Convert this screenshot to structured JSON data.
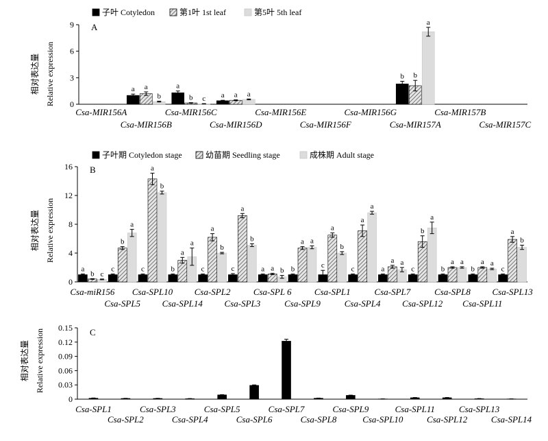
{
  "chart_data": [
    {
      "type": "bar",
      "panel": "A",
      "ylabel": "相对表达量 Relative expression",
      "ylim": [
        0,
        9
      ],
      "yticks": [
        0,
        3,
        6,
        9
      ],
      "categories": [
        "Csa-MIR156A",
        "Csa-MIR156B",
        "Csa-MIR156C",
        "Csa-MIR156D",
        "Csa-MIR156E",
        "Csa-MIR156F",
        "Csa-MIR156G",
        "Csa-MIR157A",
        "Csa-MIR157B",
        "Csa-MIR157C"
      ],
      "series": [
        {
          "name": "子叶 Cotyledon",
          "pattern": "solid",
          "values": [
            0,
            1.0,
            1.3,
            0.4,
            0,
            0,
            0,
            2.3,
            0,
            0
          ],
          "errors": [
            0,
            0.15,
            0.2,
            0.05,
            0,
            0,
            0,
            0.3,
            0,
            0
          ],
          "labels": [
            "",
            "a",
            "a",
            "a",
            "",
            "",
            "",
            "b",
            "",
            ""
          ]
        },
        {
          "name": "第1叶 1st leaf",
          "pattern": "hatch",
          "values": [
            0,
            1.2,
            0.15,
            0.45,
            0,
            0,
            0,
            2.1,
            0,
            0
          ],
          "errors": [
            0,
            0.2,
            0.03,
            0.05,
            0,
            0,
            0,
            0.6,
            0,
            0
          ],
          "labels": [
            "",
            "a",
            "b",
            "a",
            "",
            "",
            "",
            "b",
            "",
            ""
          ]
        },
        {
          "name": "第5叶 5th leaf",
          "pattern": "light",
          "values": [
            0,
            0.3,
            0.05,
            0.55,
            0,
            0,
            0,
            8.2,
            0,
            0
          ],
          "errors": [
            0,
            0.05,
            0.02,
            0.05,
            0,
            0,
            0,
            0.5,
            0,
            0
          ],
          "labels": [
            "",
            "b",
            "c",
            "a",
            "",
            "",
            "",
            "a",
            "",
            ""
          ]
        }
      ]
    },
    {
      "type": "bar",
      "panel": "B",
      "ylabel": "相对表达量 Relative expression",
      "ylim": [
        0,
        16
      ],
      "yticks": [
        0,
        4,
        8,
        12,
        16
      ],
      "categories": [
        "Csa-miR156",
        "Csa-SPL5",
        "Csa-SPL10",
        "Csa-SPL14",
        "Csa-SPL2",
        "Csa-SPL3",
        "Csa-SPL 6",
        "Csa-SPL9",
        "Csa-SPL1",
        "Csa-SPL4",
        "Csa-SPL7",
        "Csa-SPL12",
        "Csa-SPL8",
        "Csa-SPL11",
        "Csa-SPL13"
      ],
      "series": [
        {
          "name": "子叶期 Cotyledon stage",
          "pattern": "solid",
          "values": [
            1.0,
            1.0,
            1.0,
            1.0,
            1.0,
            1.0,
            1.0,
            1.0,
            1.0,
            1.0,
            1.0,
            1.0,
            1.0,
            1.0,
            1.0
          ],
          "errors": [
            0.1,
            0.1,
            0.1,
            0.1,
            0.1,
            0.15,
            0.1,
            0.1,
            0.6,
            0.1,
            0.1,
            0.1,
            0.1,
            0.1,
            0.1
          ],
          "labels": [
            "a",
            "c",
            "c",
            "b",
            "c",
            "c",
            "a",
            "b",
            "c",
            "c",
            "a",
            "c",
            "b",
            "b",
            "c"
          ]
        },
        {
          "name": "幼苗期 Seedling stage",
          "pattern": "hatch",
          "values": [
            0.4,
            4.7,
            14.3,
            3.0,
            6.2,
            9.2,
            1.1,
            4.7,
            6.5,
            7.1,
            2.1,
            5.6,
            2.0,
            2.0,
            5.9
          ],
          "errors": [
            0.05,
            0.2,
            0.8,
            0.4,
            0.5,
            0.3,
            0.1,
            0.2,
            0.3,
            0.8,
            0.2,
            0.8,
            0.1,
            0.1,
            0.4
          ],
          "labels": [
            "b",
            "b",
            "a",
            "a",
            "a",
            "a",
            "a",
            "a",
            "a",
            "a",
            "a",
            "b",
            "a",
            "a",
            "a"
          ]
        },
        {
          "name": "成株期 Adult stage",
          "pattern": "light",
          "values": [
            0.35,
            6.8,
            12.4,
            3.5,
            4.0,
            5.1,
            0.7,
            4.8,
            4.0,
            9.6,
            1.7,
            7.5,
            2.0,
            1.8,
            4.8
          ],
          "errors": [
            0.05,
            0.5,
            0.2,
            1.2,
            0.1,
            0.2,
            0.2,
            0.2,
            0.2,
            0.2,
            0.3,
            0.8,
            0.1,
            0.1,
            0.3
          ],
          "labels": [
            "c",
            "a",
            "b",
            "a",
            "b",
            "b",
            "b",
            "a",
            "b",
            "a",
            "a",
            "a",
            "a",
            "a",
            "b"
          ]
        }
      ]
    },
    {
      "type": "bar",
      "panel": "C",
      "ylabel": "相对表达量 Relative expression",
      "ylim": [
        0,
        0.15
      ],
      "yticks": [
        "0",
        "0.03",
        "0.06",
        "0.09",
        "0.12",
        "0.15"
      ],
      "categories": [
        "Csa-SPL1",
        "Csa-SPL2",
        "Csa-SPL3",
        "Csa-SPL4",
        "Csa-SPL5",
        "Csa-SPL6",
        "Csa-SPL7",
        "Csa-SPL8",
        "Csa-SPL9",
        "Csa-SPL10",
        "Csa-SPL11",
        "Csa-SPL12",
        "Csa-SPL13",
        "Csa-SPL14"
      ],
      "series": [
        {
          "name": "",
          "pattern": "solid",
          "values": [
            0.002,
            0.0015,
            0.0015,
            0.001,
            0.009,
            0.029,
            0.122,
            0.002,
            0.008,
            0.0005,
            0.003,
            0.003,
            0.001,
            0.0005
          ],
          "errors": [
            0.0005,
            0.0003,
            0.0003,
            0.0003,
            0.0005,
            0.001,
            0.004,
            0.0003,
            0.0005,
            0.0002,
            0.0005,
            0.0005,
            0.0003,
            0.0002
          ],
          "labels": [
            "",
            "",
            "",
            "",
            "",
            "",
            "",
            "",
            "",
            "",
            "",
            "",
            "",
            ""
          ]
        }
      ]
    }
  ]
}
